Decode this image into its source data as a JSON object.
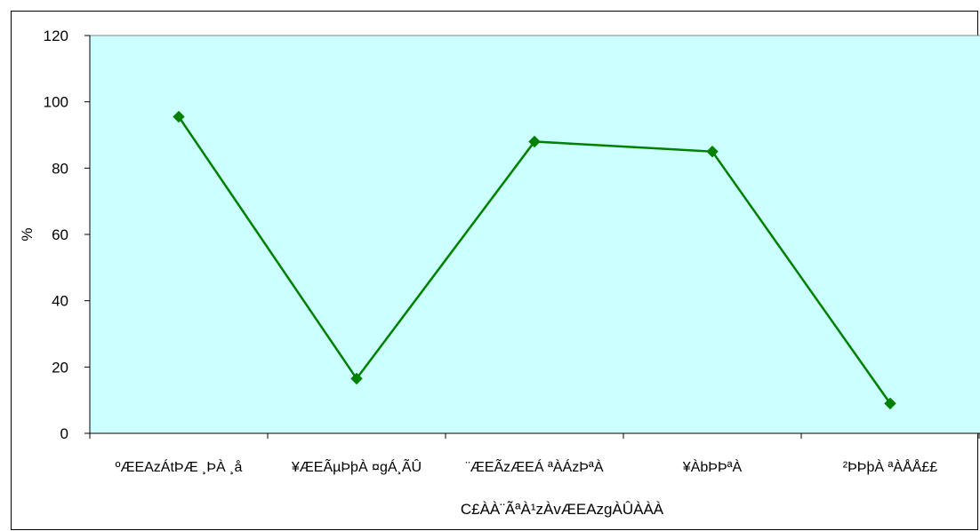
{
  "chart_data": {
    "type": "line",
    "categories": [
      "ºÆEAzÁtÞÆ ¸ÞÀ ¸å",
      "¥ÆEÃµÞþÀ ¤gÁ¸ÃÛ",
      "¨ÆEÃzÆEÁ ªÀÁzÞªÀ",
      "¥ÀbÞÞªÀ",
      "²ÞÞþÀ ªÀÅÅ££"
    ],
    "series": [
      {
        "values": [
          95.5,
          16.5,
          88,
          85,
          9
        ]
      }
    ],
    "ylabel": "%",
    "xlabel": "C£ÀÀ¨ÃªÀ¹zÀvÆEAzgÀÛÀÀÀ",
    "ylim": [
      0,
      120
    ],
    "yticks": [
      "0",
      "20",
      "40",
      "60",
      "80",
      "100",
      "120"
    ],
    "grid": false,
    "legend": "none",
    "colors": {
      "plot_background": "#ccffff",
      "series_line": "#008000",
      "marker": "#008000"
    }
  }
}
